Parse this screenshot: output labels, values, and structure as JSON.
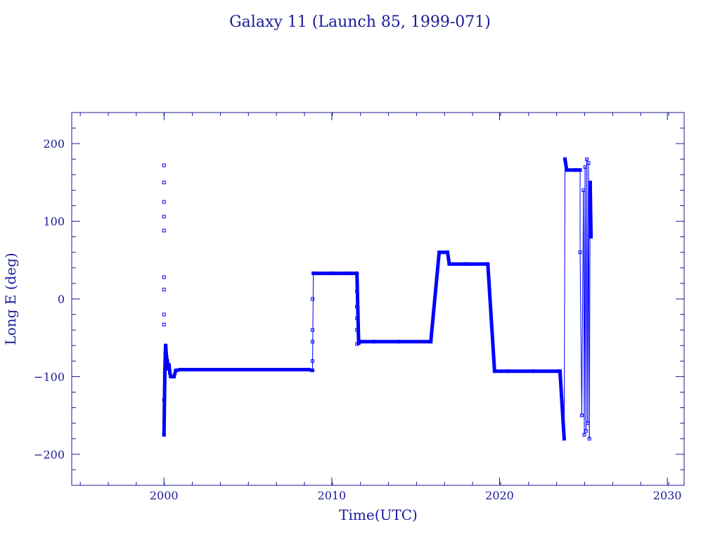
{
  "chart_data": {
    "type": "line",
    "title": "Galaxy 11 (Launch 85, 1999-071)",
    "xlabel": "Time(UTC)",
    "ylabel": "Long E (deg)",
    "xlim": [
      1994.5,
      2031
    ],
    "ylim": [
      -240,
      240
    ],
    "x_ticks": [
      2000,
      2010,
      2020,
      2030
    ],
    "y_ticks": [
      200,
      100,
      0,
      -100,
      -200
    ],
    "x_minor_step": 1.67,
    "y_minor_step": 20,
    "grid": false,
    "color": "#0000ff",
    "axis_color": "#1a1a99",
    "series": [
      {
        "x": [
          2000.0,
          2000.05,
          2000.08,
          2000.1,
          2000.15,
          2000.2,
          2000.25,
          2000.3,
          2000.35,
          2000.4,
          2000.5,
          2000.6,
          2000.7,
          2001.0,
          2002.0,
          2004.0,
          2006.0,
          2008.0,
          2008.6,
          2008.85,
          2008.9,
          2009.0,
          2010.0,
          2011.0,
          2011.5,
          2011.6,
          2011.7,
          2012.5,
          2014.0,
          2015.9,
          2016.4,
          2016.9,
          2017.0,
          2018.0,
          2019.3,
          2019.7,
          2020.5,
          2022.0,
          2023.5,
          2023.6,
          2023.85,
          2023.9,
          2024.0,
          2024.5,
          2024.8,
          2024.8,
          2024.9,
          2025.0,
          2025.05,
          2025.1,
          2025.15,
          2025.2,
          2025.25,
          2025.3,
          2025.35,
          2025.4,
          2025.45
        ],
        "y": [
          -175,
          -95,
          -70,
          -60,
          -75,
          -80,
          -90,
          -85,
          -95,
          -100,
          -100,
          -100,
          -92,
          -91,
          -91,
          -91,
          -91,
          -91,
          -91,
          -92,
          33,
          33,
          33,
          33,
          33,
          -57,
          -55,
          -55,
          -55,
          -55,
          60,
          60,
          45,
          45,
          45,
          -93,
          -93,
          -93,
          -93,
          -93,
          -180,
          180,
          166,
          166,
          166,
          60,
          -150,
          140,
          -175,
          170,
          -170,
          180,
          -160,
          175,
          -180,
          150,
          80
        ]
      }
    ],
    "sparse_markers": {
      "x": [
        2000.0,
        2000.0,
        2000.0,
        2000.0,
        2000.0,
        2000.0,
        2000.0,
        2000.0,
        2000.0,
        2000.0,
        2008.85,
        2008.85,
        2008.85,
        2008.85,
        2011.5,
        2011.5,
        2011.5,
        2011.5,
        2011.5
      ],
      "y": [
        172,
        150,
        125,
        106,
        88,
        28,
        12,
        -20,
        -33,
        -130,
        -80,
        -55,
        -40,
        0,
        10,
        -10,
        -25,
        -40,
        -58
      ]
    }
  }
}
